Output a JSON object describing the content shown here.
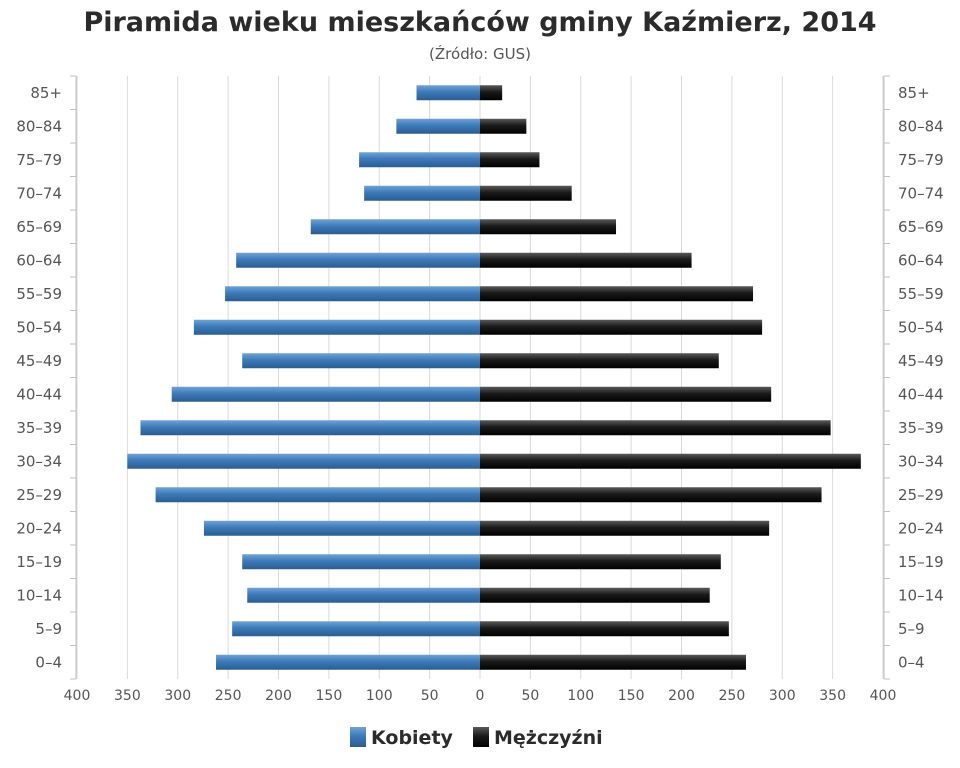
{
  "chart_data": {
    "type": "bar",
    "orientation": "horizontal",
    "title": "Piramida wieku mieszkańców gminy Kaźmierz, 2014",
    "subtitle": "(Źródło: GUS)",
    "categories": [
      "85+",
      "80–84",
      "75–79",
      "70–74",
      "65–69",
      "60–64",
      "55–59",
      "50–54",
      "45–49",
      "40–44",
      "35–39",
      "30–34",
      "25–29",
      "20–24",
      "15–19",
      "10–14",
      "5–9",
      "0–4"
    ],
    "series": [
      {
        "name": "Kobiety",
        "side": "left",
        "color": "#3d7ab8",
        "values": [
          63,
          83,
          120,
          115,
          168,
          242,
          253,
          284,
          236,
          306,
          337,
          350,
          322,
          274,
          236,
          231,
          246,
          262
        ]
      },
      {
        "name": "Mężczyźni",
        "side": "right",
        "color": "#1a1a1a",
        "values": [
          22,
          46,
          59,
          91,
          135,
          210,
          271,
          280,
          237,
          289,
          348,
          378,
          339,
          287,
          239,
          228,
          247,
          264
        ]
      }
    ],
    "xlim": [
      -400,
      400
    ],
    "x_ticks": [
      "400",
      "350",
      "300",
      "250",
      "200",
      "150",
      "100",
      "50",
      "0",
      "50",
      "100",
      "150",
      "200",
      "250",
      "300",
      "350",
      "400"
    ],
    "grid": true,
    "legend_position": "bottom-center"
  }
}
